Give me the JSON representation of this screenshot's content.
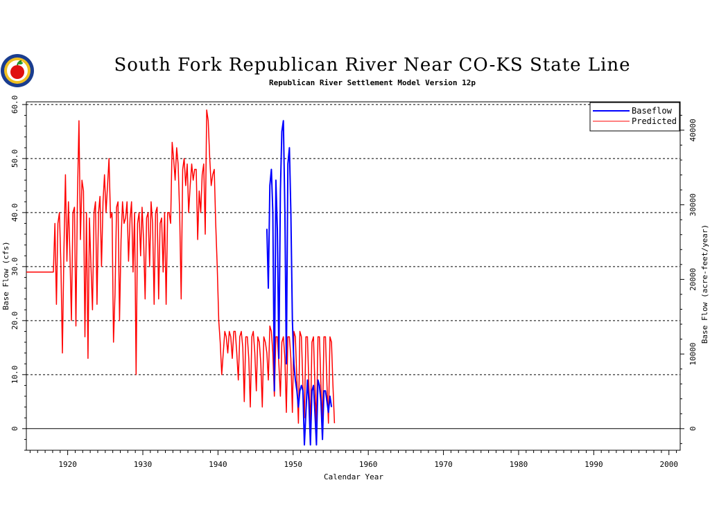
{
  "logo": {
    "icon": "apple-logo-icon"
  },
  "chart_data": {
    "type": "line",
    "title": "South Fork Republican River Near CO-KS State Line",
    "subtitle": "Republican River Settlement Model Version 12p",
    "xlabel": "Calendar Year",
    "ylabel": "Base Flow (cfs)",
    "ylabel_right": "Base Flow (acre-feet/year)",
    "xlim": [
      1914.5,
      2001.5
    ],
    "ylim": [
      -4,
      60.5
    ],
    "x_ticks": [
      1920,
      1930,
      1940,
      1950,
      1960,
      1970,
      1980,
      1990,
      2000
    ],
    "y_ticks": [
      0,
      10,
      20,
      30,
      40,
      50,
      60
    ],
    "y_tick_labels": [
      "0",
      "10.0",
      "20.0",
      "30.0",
      "40.0",
      "50.0",
      "60.0"
    ],
    "y_right_ticks": [
      0,
      10000,
      20000,
      30000,
      40000
    ],
    "y_right_scale_cfs_per_unit": 0.0013813,
    "grid": "horizontal dashed",
    "legend_position": "top-right",
    "series": [
      {
        "name": "Baseflow",
        "color": "#0000ff",
        "points": [
          [
            1946.5,
            37
          ],
          [
            1946.7,
            26
          ],
          [
            1946.9,
            45
          ],
          [
            1947.1,
            48
          ],
          [
            1947.3,
            40
          ],
          [
            1947.5,
            7
          ],
          [
            1947.7,
            46
          ],
          [
            1947.9,
            37
          ],
          [
            1948.1,
            13
          ],
          [
            1948.3,
            44
          ],
          [
            1948.5,
            55
          ],
          [
            1948.7,
            57
          ],
          [
            1948.9,
            40
          ],
          [
            1949.1,
            12
          ],
          [
            1949.3,
            49
          ],
          [
            1949.5,
            52
          ],
          [
            1949.7,
            40
          ],
          [
            1949.9,
            20
          ],
          [
            1950.1,
            12
          ],
          [
            1950.3,
            9
          ],
          [
            1950.5,
            7
          ],
          [
            1950.7,
            4
          ],
          [
            1950.9,
            7
          ],
          [
            1951.1,
            8
          ],
          [
            1951.3,
            7
          ],
          [
            1951.5,
            -3
          ],
          [
            1951.7,
            3
          ],
          [
            1951.9,
            9
          ],
          [
            1952.1,
            5
          ],
          [
            1952.3,
            -3
          ],
          [
            1952.5,
            7
          ],
          [
            1952.7,
            8
          ],
          [
            1952.9,
            3
          ],
          [
            1953.1,
            -3
          ],
          [
            1953.3,
            9
          ],
          [
            1953.5,
            8
          ],
          [
            1953.7,
            5
          ],
          [
            1953.9,
            -2
          ],
          [
            1954.1,
            7
          ],
          [
            1954.3,
            7
          ],
          [
            1954.5,
            5
          ],
          [
            1954.7,
            3
          ],
          [
            1954.9,
            6
          ],
          [
            1955.1,
            4
          ]
        ]
      },
      {
        "name": "Predicted",
        "color": "#ff0000",
        "points": [
          [
            1914.5,
            29
          ],
          [
            1918.1,
            29
          ],
          [
            1918.3,
            38
          ],
          [
            1918.5,
            23
          ],
          [
            1918.7,
            38
          ],
          [
            1918.9,
            40
          ],
          [
            1919.1,
            30
          ],
          [
            1919.3,
            14
          ],
          [
            1919.5,
            33
          ],
          [
            1919.7,
            47
          ],
          [
            1919.9,
            31
          ],
          [
            1920.1,
            42
          ],
          [
            1920.3,
            32
          ],
          [
            1920.5,
            20
          ],
          [
            1920.7,
            40
          ],
          [
            1920.9,
            41
          ],
          [
            1921.1,
            19
          ],
          [
            1921.3,
            43
          ],
          [
            1921.5,
            57
          ],
          [
            1921.7,
            35
          ],
          [
            1921.9,
            46
          ],
          [
            1922.1,
            44
          ],
          [
            1922.3,
            17
          ],
          [
            1922.5,
            40
          ],
          [
            1922.7,
            13
          ],
          [
            1922.9,
            39
          ],
          [
            1923.1,
            30
          ],
          [
            1923.3,
            22
          ],
          [
            1923.5,
            40
          ],
          [
            1923.7,
            42
          ],
          [
            1923.9,
            23
          ],
          [
            1924.1,
            40
          ],
          [
            1924.3,
            43
          ],
          [
            1924.5,
            30
          ],
          [
            1924.7,
            42
          ],
          [
            1924.9,
            47
          ],
          [
            1925.1,
            40
          ],
          [
            1925.3,
            45
          ],
          [
            1925.5,
            50
          ],
          [
            1925.7,
            39
          ],
          [
            1925.9,
            40
          ],
          [
            1926.1,
            16
          ],
          [
            1926.3,
            25
          ],
          [
            1926.5,
            41
          ],
          [
            1926.7,
            42
          ],
          [
            1926.9,
            20
          ],
          [
            1927.1,
            35
          ],
          [
            1927.3,
            42
          ],
          [
            1927.5,
            38
          ],
          [
            1927.7,
            39
          ],
          [
            1927.9,
            42
          ],
          [
            1928.1,
            31
          ],
          [
            1928.3,
            39
          ],
          [
            1928.5,
            42
          ],
          [
            1928.7,
            29
          ],
          [
            1928.9,
            40
          ],
          [
            1929.1,
            10
          ],
          [
            1929.3,
            38
          ],
          [
            1929.5,
            40
          ],
          [
            1929.7,
            32
          ],
          [
            1929.9,
            41
          ],
          [
            1930.1,
            35
          ],
          [
            1930.3,
            24
          ],
          [
            1930.5,
            39
          ],
          [
            1930.7,
            40
          ],
          [
            1930.9,
            30
          ],
          [
            1931.1,
            42
          ],
          [
            1931.3,
            38
          ],
          [
            1931.5,
            23
          ],
          [
            1931.7,
            40
          ],
          [
            1931.9,
            41
          ],
          [
            1932.1,
            24
          ],
          [
            1932.3,
            38
          ],
          [
            1932.5,
            39
          ],
          [
            1932.7,
            29
          ],
          [
            1932.9,
            40
          ],
          [
            1933.1,
            23
          ],
          [
            1933.3,
            40
          ],
          [
            1933.5,
            40
          ],
          [
            1933.7,
            38
          ],
          [
            1933.9,
            53
          ],
          [
            1934.1,
            50
          ],
          [
            1934.3,
            46
          ],
          [
            1934.5,
            52
          ],
          [
            1934.7,
            49
          ],
          [
            1934.9,
            40
          ],
          [
            1935.1,
            24
          ],
          [
            1935.3,
            48
          ],
          [
            1935.5,
            50
          ],
          [
            1935.7,
            45
          ],
          [
            1935.9,
            49
          ],
          [
            1936.1,
            40
          ],
          [
            1936.3,
            45
          ],
          [
            1936.5,
            49
          ],
          [
            1936.7,
            46
          ],
          [
            1936.9,
            48
          ],
          [
            1937.1,
            48
          ],
          [
            1937.3,
            35
          ],
          [
            1937.5,
            44
          ],
          [
            1937.7,
            40
          ],
          [
            1937.9,
            47
          ],
          [
            1938.1,
            49
          ],
          [
            1938.3,
            36
          ],
          [
            1938.5,
            59
          ],
          [
            1938.7,
            57
          ],
          [
            1938.9,
            50
          ],
          [
            1939.1,
            45
          ],
          [
            1939.3,
            47
          ],
          [
            1939.5,
            48
          ],
          [
            1939.7,
            38
          ],
          [
            1939.9,
            30
          ],
          [
            1940.1,
            20
          ],
          [
            1940.3,
            16
          ],
          [
            1940.5,
            10
          ],
          [
            1940.7,
            14
          ],
          [
            1940.9,
            18
          ],
          [
            1941.1,
            17
          ],
          [
            1941.3,
            14
          ],
          [
            1941.5,
            18
          ],
          [
            1941.7,
            17
          ],
          [
            1941.9,
            13
          ],
          [
            1942.1,
            18
          ],
          [
            1942.3,
            18
          ],
          [
            1942.5,
            14
          ],
          [
            1942.7,
            9
          ],
          [
            1942.9,
            17
          ],
          [
            1943.1,
            18
          ],
          [
            1943.3,
            15
          ],
          [
            1943.5,
            5
          ],
          [
            1943.7,
            17
          ],
          [
            1943.9,
            17
          ],
          [
            1944.1,
            13
          ],
          [
            1944.3,
            4
          ],
          [
            1944.5,
            17
          ],
          [
            1944.7,
            18
          ],
          [
            1944.9,
            14
          ],
          [
            1945.1,
            7
          ],
          [
            1945.3,
            17
          ],
          [
            1945.5,
            16
          ],
          [
            1945.7,
            12
          ],
          [
            1945.9,
            4
          ],
          [
            1946.1,
            17
          ],
          [
            1946.3,
            16
          ],
          [
            1946.5,
            14
          ],
          [
            1946.7,
            9
          ],
          [
            1946.9,
            19
          ],
          [
            1947.1,
            18
          ],
          [
            1947.3,
            14
          ],
          [
            1947.5,
            6
          ],
          [
            1947.7,
            17
          ],
          [
            1947.9,
            17
          ],
          [
            1948.1,
            12
          ],
          [
            1948.3,
            6
          ],
          [
            1948.5,
            16
          ],
          [
            1948.7,
            17
          ],
          [
            1948.9,
            13
          ],
          [
            1949.1,
            3
          ],
          [
            1949.3,
            17
          ],
          [
            1949.5,
            17
          ],
          [
            1949.7,
            13
          ],
          [
            1949.9,
            3
          ],
          [
            1950.1,
            18
          ],
          [
            1950.3,
            17
          ],
          [
            1950.5,
            9
          ],
          [
            1950.7,
            1
          ],
          [
            1950.9,
            18
          ],
          [
            1951.1,
            17
          ],
          [
            1951.3,
            8
          ],
          [
            1951.5,
            2
          ],
          [
            1951.7,
            17
          ],
          [
            1951.9,
            17
          ],
          [
            1952.1,
            8
          ],
          [
            1952.3,
            1
          ],
          [
            1952.5,
            16
          ],
          [
            1952.7,
            17
          ],
          [
            1952.9,
            8
          ],
          [
            1953.1,
            1
          ],
          [
            1953.3,
            17
          ],
          [
            1953.5,
            17
          ],
          [
            1953.7,
            8
          ],
          [
            1953.9,
            1
          ],
          [
            1954.1,
            17
          ],
          [
            1954.3,
            17
          ],
          [
            1954.5,
            8
          ],
          [
            1954.7,
            1
          ],
          [
            1954.9,
            17
          ],
          [
            1955.1,
            16
          ],
          [
            1955.3,
            8
          ],
          [
            1955.5,
            1
          ]
        ]
      }
    ]
  }
}
